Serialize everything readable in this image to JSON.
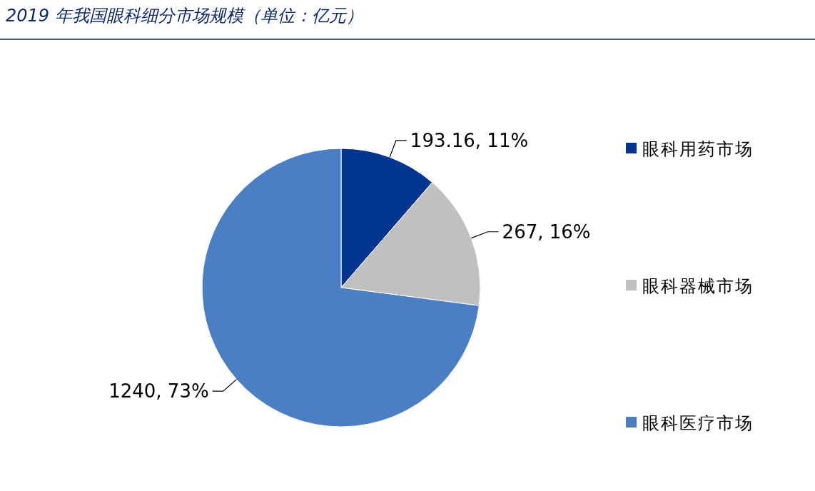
{
  "chart_data": {
    "type": "pie",
    "title": "2019 年我国眼科细分市场规模（单位：亿元）",
    "categories": [
      "眼科用药市场",
      "眼科器械市场",
      "眼科医疗市场"
    ],
    "values": [
      193.16,
      267,
      1240
    ],
    "value_labels": [
      "193.16, 11%",
      "267, 16%",
      "1240, 73%"
    ],
    "colors": [
      "#003591",
      "#c0c0c0",
      "#4a7fc4"
    ],
    "legend": "right"
  }
}
